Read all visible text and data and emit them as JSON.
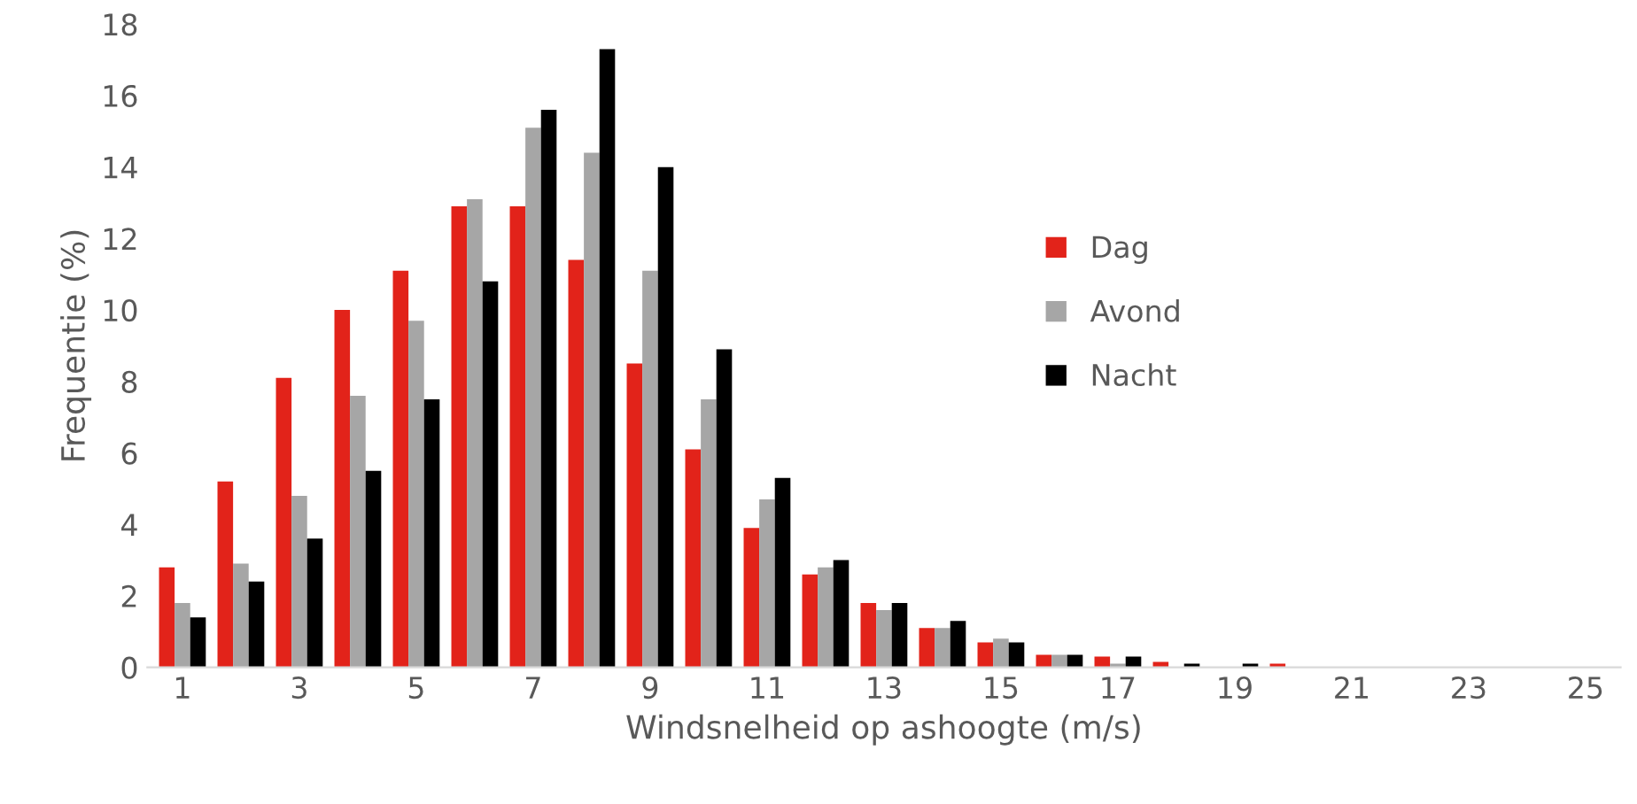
{
  "chart_data": {
    "type": "bar",
    "xlabel": "Windsnelheid op ashoogte (m/s)",
    "ylabel": "Frequentie (%)",
    "categories": [
      "1",
      null,
      "3",
      null,
      "5",
      null,
      "7",
      null,
      "9",
      null,
      "11",
      null,
      "13",
      null,
      "15",
      null,
      "17",
      null,
      "19",
      null,
      "21",
      null,
      "23",
      null,
      "25"
    ],
    "series": [
      {
        "name": "Dag",
        "color": "#e2231a",
        "values": [
          2.8,
          5.2,
          8.1,
          10.0,
          11.1,
          12.9,
          12.9,
          11.4,
          8.5,
          6.1,
          3.9,
          2.6,
          1.8,
          1.1,
          0.7,
          0.35,
          0.3,
          0.15,
          null,
          0.1,
          0,
          0,
          0,
          0,
          0
        ]
      },
      {
        "name": "Avond",
        "color": "#a6a6a6",
        "values": [
          1.8,
          2.9,
          4.8,
          7.6,
          9.7,
          13.1,
          15.1,
          14.4,
          11.1,
          7.5,
          4.7,
          2.8,
          1.6,
          1.1,
          0.8,
          0.35,
          0.1,
          null,
          null,
          null,
          0,
          0,
          0,
          0,
          0
        ]
      },
      {
        "name": "Nacht",
        "color": "#000000",
        "values": [
          1.4,
          2.4,
          3.6,
          5.5,
          7.5,
          10.8,
          15.6,
          17.3,
          14.0,
          8.9,
          5.3,
          3.0,
          1.8,
          1.3,
          0.7,
          0.35,
          0.3,
          0.1,
          0.1,
          0,
          0,
          0,
          0,
          0,
          0
        ]
      }
    ],
    "ylim": [
      0,
      18
    ],
    "yticks": [
      0,
      2,
      4,
      6,
      8,
      10,
      12,
      14,
      16,
      18
    ],
    "grid": false,
    "legend": "right"
  }
}
